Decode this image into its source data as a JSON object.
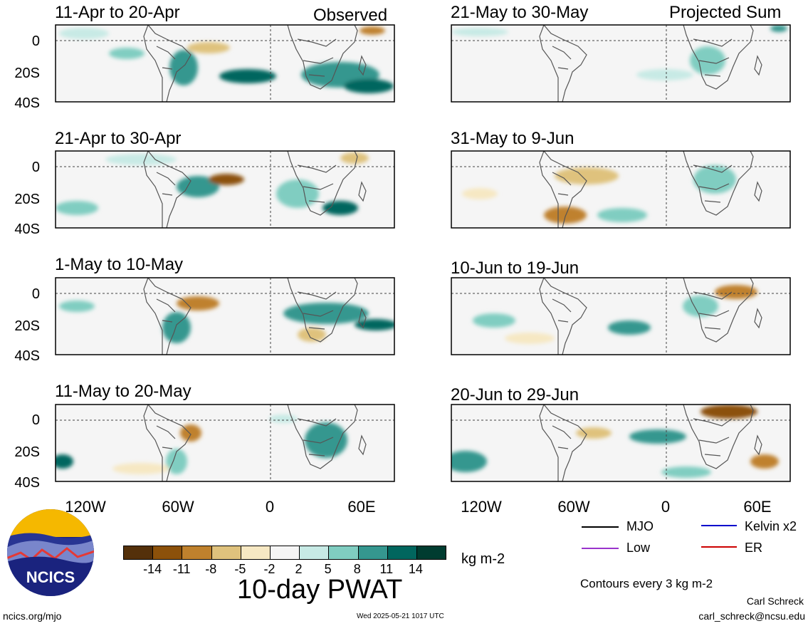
{
  "header": {
    "left_tag": "Observed",
    "right_tag": "Projected Sum"
  },
  "panels": {
    "left": [
      "11-Apr to 20-Apr",
      "21-Apr to 30-Apr",
      "1-May to 10-May",
      "11-May to 20-May"
    ],
    "right": [
      "21-May to 30-May",
      "31-May to 9-Jun",
      "10-Jun to 19-Jun",
      "20-Jun to 29-Jun"
    ]
  },
  "axes": {
    "lat_labels": [
      "0",
      "20S",
      "40S"
    ],
    "lon_labels": [
      "120W",
      "60W",
      "0",
      "60E"
    ]
  },
  "colorbar": {
    "ticks": [
      "-14",
      "-11",
      "-8",
      "-5",
      "-2",
      "2",
      "5",
      "8",
      "11",
      "14"
    ],
    "colors": [
      "#54300a",
      "#8c510a",
      "#bf812d",
      "#dfc27d",
      "#f6e8c3",
      "#f5f5f5",
      "#c7eae5",
      "#80cdc1",
      "#35978f",
      "#01665e",
      "#003c30"
    ],
    "units": "kg m-2",
    "field_title": "10-day PWAT"
  },
  "legend": {
    "items": [
      {
        "label": "MJO",
        "color": "#000000"
      },
      {
        "label": "Kelvin x2",
        "color": "#0000cc"
      },
      {
        "label": "Low",
        "color": "#9933cc"
      },
      {
        "label": "ER",
        "color": "#cc0000"
      }
    ],
    "contour_note": "Contours every 3 kg m-2"
  },
  "logo": {
    "text": "NCICS"
  },
  "footer": {
    "url": "ncics.org/mjo",
    "timestamp": "Wed 2025-05-21 1017 UTC",
    "author": "Carl Schreck",
    "email": "carl_schreck@ncsu.edu"
  }
}
